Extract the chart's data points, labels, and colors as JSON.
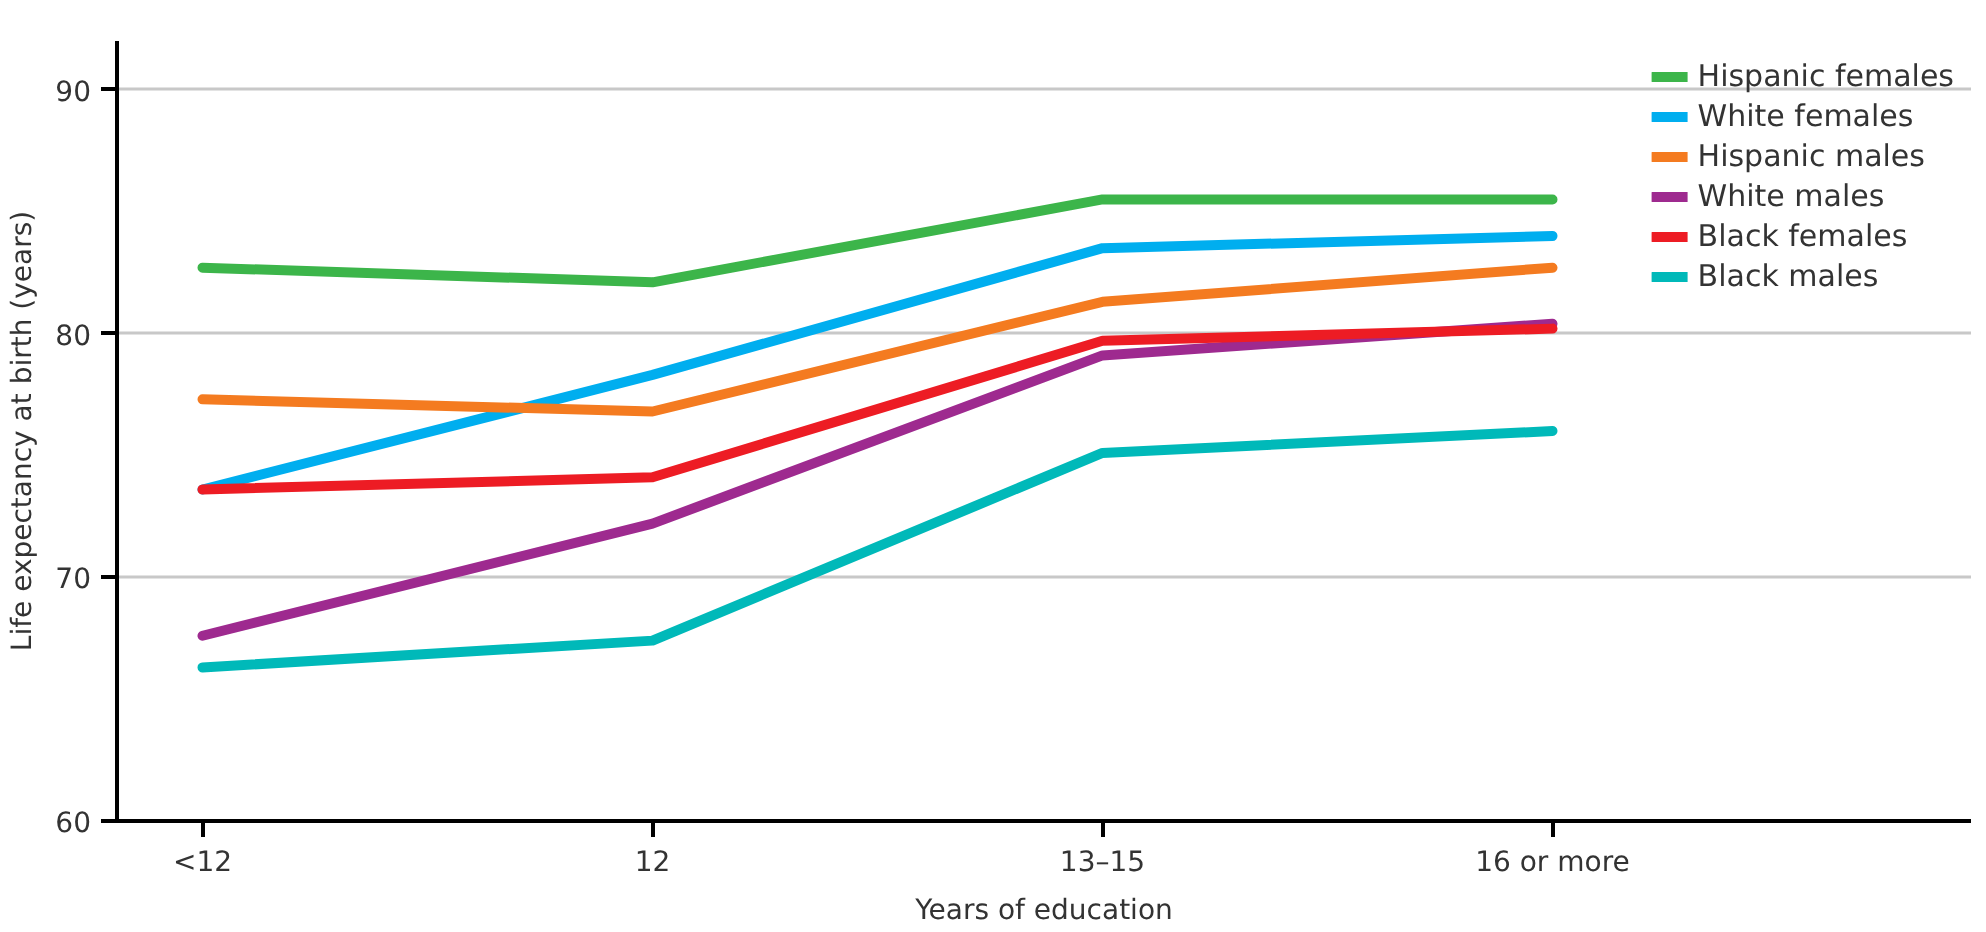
{
  "chart_data": {
    "type": "line",
    "xlabel": "Years of education",
    "ylabel": "Life expectancy at birth (years)",
    "categories": [
      "<12",
      "12",
      "13–15",
      "16 or more"
    ],
    "ylim": [
      60,
      92
    ],
    "yticks": [
      60,
      70,
      80,
      90
    ],
    "grid": "y",
    "legend": "top right",
    "line_style": "solid",
    "marker": "none",
    "series": [
      {
        "name": "Hispanic females",
        "color": "#3cb54a",
        "values": [
          82.7,
          82.1,
          85.5,
          85.5
        ]
      },
      {
        "name": "White females",
        "color": "#00aeef",
        "values": [
          73.6,
          78.3,
          83.5,
          84.0
        ]
      },
      {
        "name": "Hispanic males",
        "color": "#f47b20",
        "values": [
          77.3,
          76.8,
          81.3,
          82.7
        ]
      },
      {
        "name": "White males",
        "color": "#9e2a8f",
        "values": [
          67.6,
          72.2,
          79.1,
          80.4
        ]
      },
      {
        "name": "Black females",
        "color": "#ed1c24",
        "values": [
          73.6,
          74.1,
          79.7,
          80.2
        ]
      },
      {
        "name": "Black males",
        "color": "#00b9b9",
        "values": [
          66.3,
          67.4,
          75.1,
          76.0
        ]
      }
    ]
  }
}
